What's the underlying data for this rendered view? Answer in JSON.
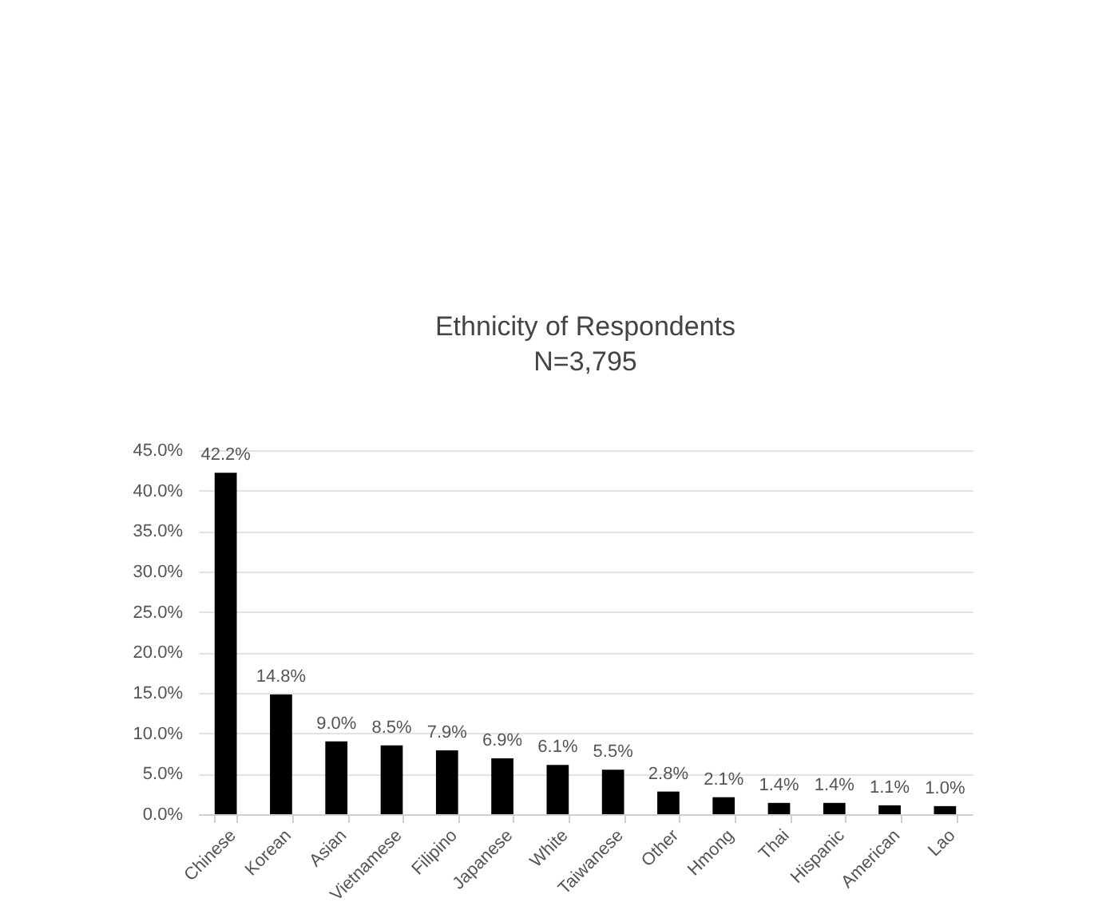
{
  "chart_data": {
    "type": "bar",
    "title": "Ethnicity of Respondents",
    "subtitle": "N=3,795",
    "categories": [
      "Chinese",
      "Korean",
      "Asian",
      "Vietnamese",
      "Filipino",
      "Japanese",
      "White",
      "Taiwanese",
      "Other",
      "Hmong",
      "Thai",
      "Hispanic",
      "American",
      "Lao"
    ],
    "values": [
      42.2,
      14.8,
      9.0,
      8.5,
      7.9,
      6.9,
      6.1,
      5.5,
      2.8,
      2.1,
      1.4,
      1.4,
      1.1,
      1.0
    ],
    "value_labels": [
      "42.2%",
      "14.8%",
      "9.0%",
      "8.5%",
      "7.9%",
      "6.9%",
      "6.1%",
      "5.5%",
      "2.8%",
      "2.1%",
      "1.4%",
      "1.4%",
      "1.1%",
      "1.0%"
    ],
    "color": "#000000",
    "ylim": [
      0,
      45
    ],
    "yticks": [
      {
        "value": 0,
        "label": "0.0%"
      },
      {
        "value": 5,
        "label": "5.0%"
      },
      {
        "value": 10,
        "label": "10.0%"
      },
      {
        "value": 15,
        "label": "15.0%"
      },
      {
        "value": 20,
        "label": "20.0%"
      },
      {
        "value": 25,
        "label": "25.0%"
      },
      {
        "value": 30,
        "label": "30.0%"
      },
      {
        "value": 35,
        "label": "35.0%"
      },
      {
        "value": 40,
        "label": "40.0%"
      },
      {
        "value": 45,
        "label": "45.0%"
      }
    ],
    "grid": "y"
  }
}
